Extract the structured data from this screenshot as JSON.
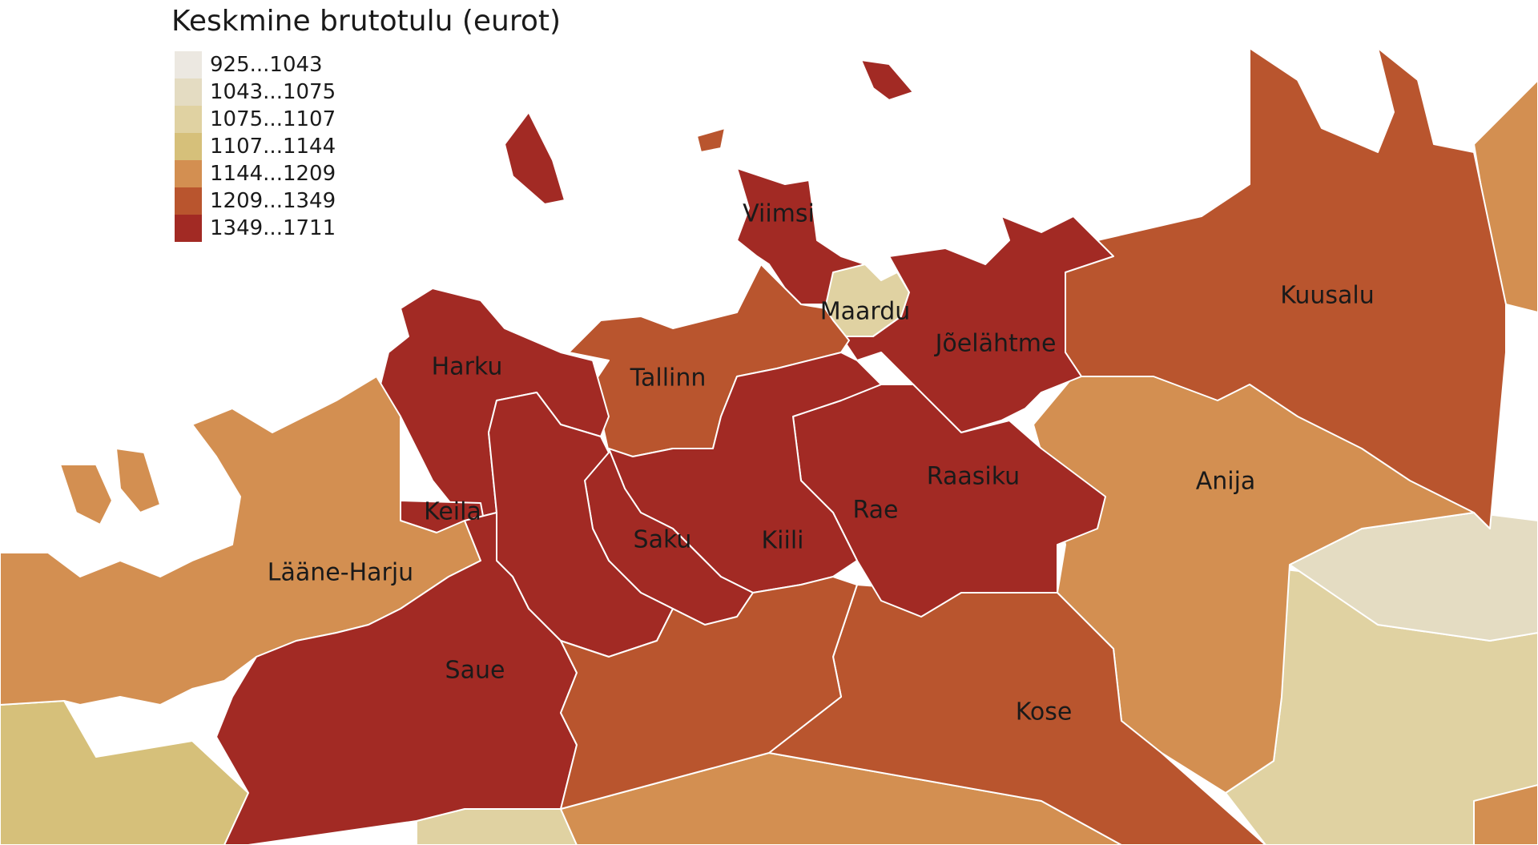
{
  "legend": {
    "title": "Keskmine brutotulu (eurot)",
    "classes": [
      {
        "label": "925...1043",
        "color": "#ece8e1"
      },
      {
        "label": "1043...1075",
        "color": "#e4dcc2"
      },
      {
        "label": "1075...1107",
        "color": "#e0d2a2"
      },
      {
        "label": "1107...1144",
        "color": "#d6c07a"
      },
      {
        "label": "1144...1209",
        "color": "#d38f51"
      },
      {
        "label": "1209...1349",
        "color": "#b9552e"
      },
      {
        "label": "1349...1711",
        "color": "#a22a24"
      }
    ]
  },
  "municipalities": [
    {
      "id": "viimsi",
      "name": "Viimsi",
      "class": 6
    },
    {
      "id": "maardu",
      "name": "Maardu",
      "class": 2
    },
    {
      "id": "joelahtme",
      "name": "Jõelähtme",
      "class": 6
    },
    {
      "id": "kuusalu",
      "name": "Kuusalu",
      "class": 5
    },
    {
      "id": "harku",
      "name": "Harku",
      "class": 6
    },
    {
      "id": "tallinn",
      "name": "Tallinn",
      "class": 5
    },
    {
      "id": "raasiku",
      "name": "Raasiku",
      "class": 6
    },
    {
      "id": "anija",
      "name": "Anija",
      "class": 4
    },
    {
      "id": "keila",
      "name": "Keila",
      "class": 6
    },
    {
      "id": "rae",
      "name": "Rae",
      "class": 6
    },
    {
      "id": "saku",
      "name": "Saku",
      "class": 6
    },
    {
      "id": "kiili",
      "name": "Kiili",
      "class": 6
    },
    {
      "id": "laane-harju",
      "name": "Lääne-Harju",
      "class": 4
    },
    {
      "id": "saue",
      "name": "Saue",
      "class": 6
    },
    {
      "id": "kose",
      "name": "Kose",
      "class": 5
    }
  ]
}
